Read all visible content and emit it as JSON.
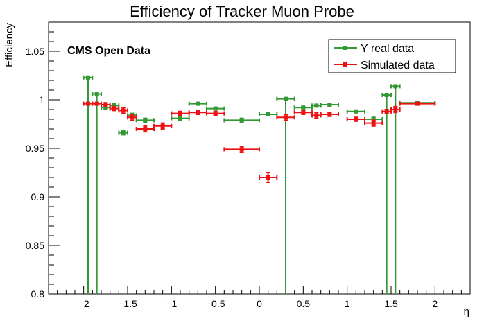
{
  "chart_data": {
    "type": "scatter",
    "title": "Efficiency of Tracker Muon Probe",
    "xlabel": "η",
    "ylabel": "Efficiency",
    "xlim": [
      -2.4,
      2.4
    ],
    "ylim": [
      0.8,
      1.08
    ],
    "x_ticks": [
      -2,
      -1.5,
      -1,
      -0.5,
      0,
      0.5,
      1,
      1.5,
      2
    ],
    "x_tick_labels": [
      "−2",
      "−1.5",
      "−1",
      "−0.5",
      "0",
      "0.5",
      "1",
      "1.5",
      "2"
    ],
    "y_ticks": [
      0.8,
      0.85,
      0.9,
      0.95,
      1,
      1.05
    ],
    "y_tick_labels": [
      "0.8",
      "0.85",
      "0.9",
      "0.95",
      "1",
      "1.05"
    ],
    "grid": false,
    "legend_position": "top-right",
    "annotation": "CMS Open Data",
    "series": [
      {
        "name": "Υ real data",
        "color": "#339933",
        "points": [
          {
            "x": -1.95,
            "xerr": 0.05,
            "y": 1.023,
            "ylow": 0.8,
            "yhigh": 1.023
          },
          {
            "x": -1.85,
            "xerr": 0.05,
            "y": 1.006,
            "ylow": 0.8,
            "yhigh": 1.006
          },
          {
            "x": -1.75,
            "xerr": 0.05,
            "y": 0.992,
            "ylow": 0.99,
            "yhigh": 0.994
          },
          {
            "x": -1.65,
            "xerr": 0.05,
            "y": 0.994,
            "ylow": 0.992,
            "yhigh": 0.996
          },
          {
            "x": -1.55,
            "xerr": 0.05,
            "y": 0.966,
            "ylow": 0.964,
            "yhigh": 0.968
          },
          {
            "x": -1.45,
            "xerr": 0.05,
            "y": 0.984,
            "ylow": 0.982,
            "yhigh": 0.986
          },
          {
            "x": -1.3,
            "xerr": 0.1,
            "y": 0.979,
            "ylow": 0.977,
            "yhigh": 0.981
          },
          {
            "x": -0.9,
            "xerr": 0.1,
            "y": 0.981,
            "ylow": 0.979,
            "yhigh": 0.983
          },
          {
            "x": -0.7,
            "xerr": 0.1,
            "y": 0.996,
            "ylow": 0.995,
            "yhigh": 0.997
          },
          {
            "x": -0.5,
            "xerr": 0.1,
            "y": 0.991,
            "ylow": 0.99,
            "yhigh": 0.992
          },
          {
            "x": -0.2,
            "xerr": 0.2,
            "y": 0.979,
            "ylow": 0.977,
            "yhigh": 0.981
          },
          {
            "x": 0.1,
            "xerr": 0.1,
            "y": 0.985,
            "ylow": 0.984,
            "yhigh": 0.986
          },
          {
            "x": 0.3,
            "xerr": 0.1,
            "y": 1.001,
            "ylow": 0.8,
            "yhigh": 1.001
          },
          {
            "x": 0.5,
            "xerr": 0.1,
            "y": 0.992,
            "ylow": 0.991,
            "yhigh": 0.993
          },
          {
            "x": 0.65,
            "xerr": 0.05,
            "y": 0.994,
            "ylow": 0.993,
            "yhigh": 0.995
          },
          {
            "x": 0.8,
            "xerr": 0.1,
            "y": 0.995,
            "ylow": 0.994,
            "yhigh": 0.996
          },
          {
            "x": 1.1,
            "xerr": 0.1,
            "y": 0.988,
            "ylow": 0.987,
            "yhigh": 0.989
          },
          {
            "x": 1.3,
            "xerr": 0.1,
            "y": 0.98,
            "ylow": 0.978,
            "yhigh": 0.982
          },
          {
            "x": 1.45,
            "xerr": 0.05,
            "y": 1.005,
            "ylow": 0.8,
            "yhigh": 1.005
          },
          {
            "x": 1.55,
            "xerr": 0.05,
            "y": 1.014,
            "ylow": 0.8,
            "yhigh": 1.014
          },
          {
            "x": 1.8,
            "xerr": 0.2,
            "y": 0.997,
            "ylow": 0.996,
            "yhigh": 0.998
          }
        ]
      },
      {
        "name": "Simulated data",
        "color": "#ee1111",
        "points": [
          {
            "x": -1.95,
            "xerr": 0.05,
            "y": 0.996,
            "ylow": 0.995,
            "yhigh": 0.997
          },
          {
            "x": -1.85,
            "xerr": 0.05,
            "y": 0.996,
            "ylow": 0.995,
            "yhigh": 0.997
          },
          {
            "x": -1.75,
            "xerr": 0.05,
            "y": 0.995,
            "ylow": 0.993,
            "yhigh": 0.997
          },
          {
            "x": -1.65,
            "xerr": 0.05,
            "y": 0.991,
            "ylow": 0.989,
            "yhigh": 0.993
          },
          {
            "x": -1.55,
            "xerr": 0.05,
            "y": 0.989,
            "ylow": 0.986,
            "yhigh": 0.992
          },
          {
            "x": -1.45,
            "xerr": 0.05,
            "y": 0.982,
            "ylow": 0.979,
            "yhigh": 0.985
          },
          {
            "x": -1.3,
            "xerr": 0.1,
            "y": 0.97,
            "ylow": 0.967,
            "yhigh": 0.973
          },
          {
            "x": -1.1,
            "xerr": 0.1,
            "y": 0.973,
            "ylow": 0.97,
            "yhigh": 0.976
          },
          {
            "x": -0.9,
            "xerr": 0.1,
            "y": 0.986,
            "ylow": 0.984,
            "yhigh": 0.988
          },
          {
            "x": -0.7,
            "xerr": 0.1,
            "y": 0.987,
            "ylow": 0.985,
            "yhigh": 0.989
          },
          {
            "x": -0.5,
            "xerr": 0.1,
            "y": 0.986,
            "ylow": 0.984,
            "yhigh": 0.988
          },
          {
            "x": -0.2,
            "xerr": 0.2,
            "y": 0.949,
            "ylow": 0.946,
            "yhigh": 0.952
          },
          {
            "x": 0.1,
            "xerr": 0.1,
            "y": 0.92,
            "ylow": 0.915,
            "yhigh": 0.925
          },
          {
            "x": 0.3,
            "xerr": 0.1,
            "y": 0.982,
            "ylow": 0.979,
            "yhigh": 0.985
          },
          {
            "x": 0.5,
            "xerr": 0.1,
            "y": 0.987,
            "ylow": 0.985,
            "yhigh": 0.989
          },
          {
            "x": 0.65,
            "xerr": 0.05,
            "y": 0.984,
            "ylow": 0.981,
            "yhigh": 0.987
          },
          {
            "x": 0.8,
            "xerr": 0.1,
            "y": 0.985,
            "ylow": 0.983,
            "yhigh": 0.987
          },
          {
            "x": 1.1,
            "xerr": 0.1,
            "y": 0.98,
            "ylow": 0.978,
            "yhigh": 0.982
          },
          {
            "x": 1.3,
            "xerr": 0.1,
            "y": 0.976,
            "ylow": 0.973,
            "yhigh": 0.979
          },
          {
            "x": 1.45,
            "xerr": 0.05,
            "y": 0.988,
            "ylow": 0.986,
            "yhigh": 0.99
          },
          {
            "x": 1.55,
            "xerr": 0.05,
            "y": 0.99,
            "ylow": 0.987,
            "yhigh": 0.993
          },
          {
            "x": 1.8,
            "xerr": 0.2,
            "y": 0.996,
            "ylow": 0.995,
            "yhigh": 0.997
          }
        ]
      }
    ]
  }
}
